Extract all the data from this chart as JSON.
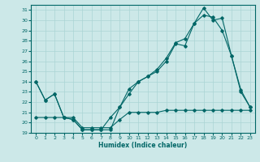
{
  "xlabel": "Humidex (Indice chaleur)",
  "background_color": "#cce8e8",
  "line_color": "#006666",
  "grid_color": "#aad4d4",
  "xlim": [
    -0.5,
    23.5
  ],
  "ylim": [
    19,
    31.5
  ],
  "yticks": [
    19,
    20,
    21,
    22,
    23,
    24,
    25,
    26,
    27,
    28,
    29,
    30,
    31
  ],
  "xticks": [
    0,
    1,
    2,
    3,
    4,
    5,
    6,
    7,
    8,
    9,
    10,
    11,
    12,
    13,
    14,
    15,
    16,
    17,
    18,
    19,
    20,
    21,
    22,
    23
  ],
  "series1_x": [
    0,
    1,
    2,
    3,
    4,
    5,
    6,
    7,
    8,
    9,
    10,
    11,
    12,
    13,
    14,
    15,
    16,
    17,
    18,
    19,
    20,
    21,
    22,
    23
  ],
  "series1_y": [
    24.0,
    22.2,
    22.8,
    20.5,
    20.3,
    19.3,
    19.3,
    19.3,
    20.5,
    21.5,
    23.3,
    24.0,
    24.5,
    25.2,
    26.3,
    27.8,
    28.2,
    29.7,
    30.5,
    30.3,
    29.0,
    26.5,
    23.2,
    21.5
  ],
  "series2_x": [
    0,
    1,
    2,
    3,
    4,
    5,
    6,
    7,
    8,
    9,
    10,
    11,
    12,
    13,
    14,
    15,
    16,
    17,
    18,
    19,
    20,
    21,
    22,
    23
  ],
  "series2_y": [
    24.0,
    22.2,
    22.8,
    20.5,
    20.3,
    19.3,
    19.3,
    19.3,
    19.3,
    21.5,
    22.8,
    24.0,
    24.5,
    25.0,
    26.0,
    27.7,
    27.5,
    29.7,
    31.2,
    30.0,
    30.2,
    26.5,
    23.0,
    21.5
  ],
  "series3_x": [
    0,
    1,
    2,
    3,
    4,
    5,
    6,
    7,
    8,
    9,
    10,
    11,
    12,
    13,
    14,
    15,
    16,
    17,
    18,
    19,
    20,
    21,
    22,
    23
  ],
  "series3_y": [
    20.5,
    20.5,
    20.5,
    20.5,
    20.5,
    19.5,
    19.5,
    19.5,
    19.5,
    20.3,
    21.0,
    21.0,
    21.0,
    21.0,
    21.2,
    21.2,
    21.2,
    21.2,
    21.2,
    21.2,
    21.2,
    21.2,
    21.2,
    21.2
  ]
}
